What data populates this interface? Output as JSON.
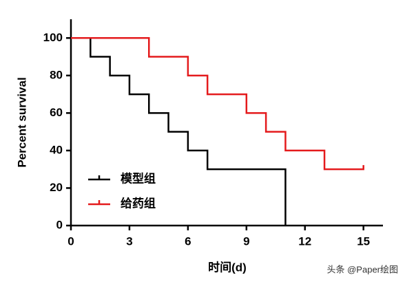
{
  "chart_data": {
    "type": "step",
    "xlabel": "时间(d)",
    "ylabel": "Percent survival",
    "xlim": [
      0,
      16
    ],
    "xticks": [
      0,
      3,
      6,
      9,
      12,
      15
    ],
    "ylim": [
      0,
      110
    ],
    "yticks": [
      0,
      20,
      40,
      60,
      80,
      100
    ],
    "series": [
      {
        "name": "模型组",
        "color": "#000000",
        "x": [
          0,
          1,
          2,
          3,
          4,
          5,
          6,
          7,
          11
        ],
        "values": [
          100,
          90,
          80,
          70,
          60,
          50,
          40,
          30,
          0
        ]
      },
      {
        "name": "给药组",
        "color": "#e41a1c",
        "x": [
          0,
          4,
          6,
          7,
          9,
          10,
          11,
          13,
          15
        ],
        "values": [
          100,
          90,
          80,
          70,
          60,
          50,
          40,
          30,
          30
        ]
      }
    ],
    "watermark": "头条 @Paper绘图"
  }
}
